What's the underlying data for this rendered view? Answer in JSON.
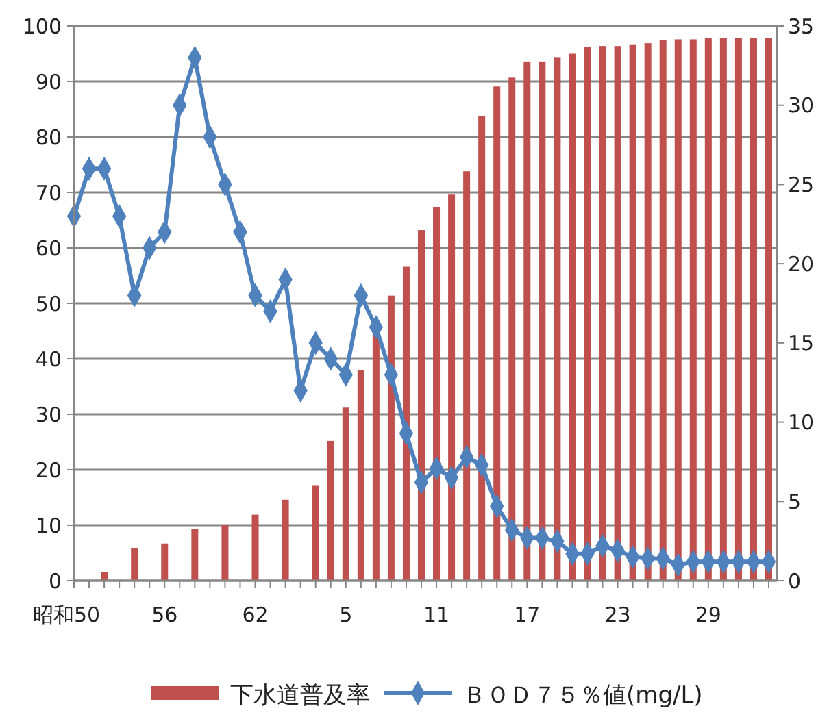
{
  "chart_data": {
    "type": "bar",
    "categories": [
      "昭和50",
      null,
      null,
      null,
      null,
      null,
      "56",
      null,
      null,
      null,
      null,
      null,
      "62",
      null,
      null,
      null,
      null,
      null,
      "5",
      null,
      null,
      null,
      null,
      null,
      "11",
      null,
      null,
      null,
      null,
      null,
      "17",
      null,
      null,
      null,
      null,
      null,
      "23",
      null,
      null,
      null,
      null,
      null,
      "29",
      null,
      null,
      null,
      null
    ],
    "series": [
      {
        "name": "下水道普及率",
        "color": "#c0504d",
        "values": [
          null,
          null,
          1.6,
          null,
          5.9,
          null,
          6.7,
          null,
          9.3,
          null,
          10.1,
          null,
          11.9,
          null,
          14.6,
          null,
          17.1,
          25.2,
          31.2,
          38.0,
          44.7,
          51.4,
          56.6,
          63.2,
          67.4,
          69.6,
          73.8,
          83.8,
          89.1,
          90.7,
          93.6,
          93.6,
          94.4,
          95.0,
          96.2,
          96.4,
          96.4,
          96.7,
          96.9,
          97.4,
          97.6,
          97.6,
          97.8,
          97.8,
          97.9,
          97.9,
          97.9
        ]
      },
      {
        "name": "ＢＯＤ７５％値(mg/L)",
        "type": "line",
        "axis": "y2",
        "color": "#4f81bd",
        "marker": "diamond",
        "values": [
          23,
          26,
          26,
          23,
          18,
          21,
          22,
          30,
          33,
          28,
          25,
          22,
          18,
          17,
          19,
          12,
          15,
          14,
          13,
          18,
          16,
          13,
          9.3,
          6.2,
          7.1,
          6.5,
          7.8,
          7.3,
          4.7,
          3.2,
          2.7,
          2.7,
          2.5,
          1.7,
          1.7,
          2.2,
          1.9,
          1.5,
          1.4,
          1.4,
          1.0,
          1.2,
          1.2,
          1.2,
          1.2,
          1.2,
          1.2
        ]
      }
    ],
    "ylim": [
      0,
      100
    ],
    "yticks": [
      0,
      10,
      20,
      30,
      40,
      50,
      60,
      70,
      80,
      90,
      100
    ],
    "y2lim": [
      0,
      35
    ],
    "y2ticks": [
      0,
      5,
      10,
      15,
      20,
      25,
      30,
      35
    ],
    "grid": "y",
    "legend": "bottom"
  }
}
